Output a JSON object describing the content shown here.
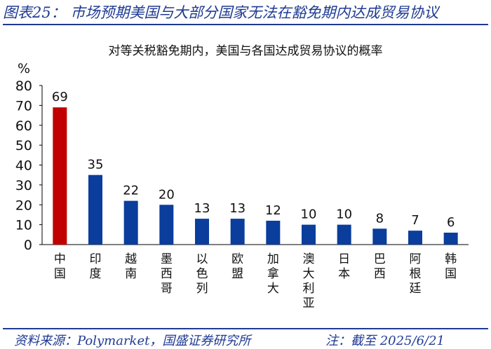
{
  "header": {
    "title": "图表25：  市场预期美国与大部分国家无法在豁免期内达成贸易协议"
  },
  "footer": {
    "source": "资料来源：Polymarket，国盛证券研究所",
    "note": "注：截至 2025/6/21"
  },
  "colors": {
    "accent_line": "#1f3a93",
    "highlight_bar": "#c00000",
    "bar": "#0a3d9c"
  },
  "chart_data": {
    "type": "bar",
    "title": "对等关税豁免期内，美国与各国达成贸易协议的概率",
    "ylabel": "%",
    "ylim": [
      0,
      80
    ],
    "yticks": [
      0,
      10,
      20,
      30,
      40,
      50,
      60,
      70,
      80
    ],
    "categories": [
      "中国",
      "印度",
      "越南",
      "墨西哥",
      "以色列",
      "欧盟",
      "加拿大",
      "澳大利亚",
      "日本",
      "巴西",
      "阿根廷",
      "韩国"
    ],
    "values": [
      69,
      35,
      22,
      20,
      13,
      13,
      12,
      10,
      10,
      8,
      7,
      6
    ],
    "highlight_index": 0,
    "grid": false,
    "legend": "none"
  }
}
